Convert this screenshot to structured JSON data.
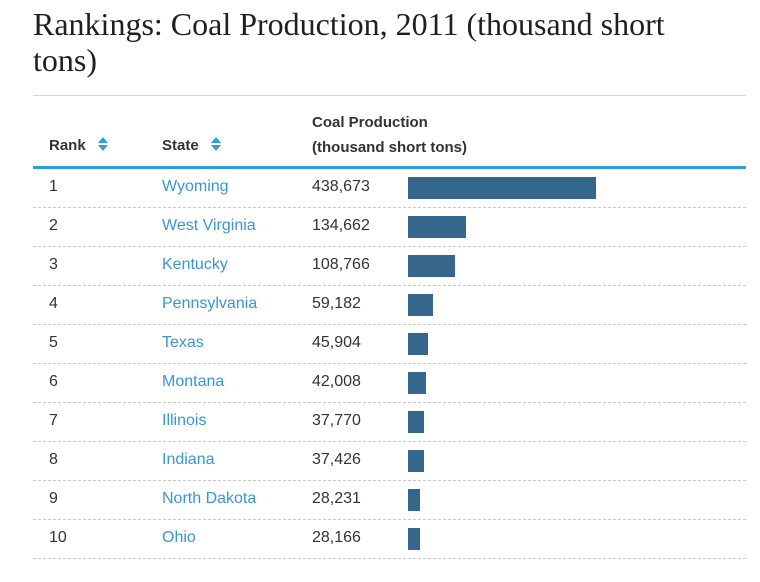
{
  "title": "Rankings: Coal Production, 2011 (thousand short tons)",
  "columns": {
    "rank": "Rank",
    "state": "State",
    "production_line1": "Coal Production",
    "production_line2": "(thousand short tons)"
  },
  "colors": {
    "bar": "#34678b",
    "link": "#3a95d3",
    "header_rule": "#2e9fd9"
  },
  "chart_data": {
    "type": "bar",
    "orientation": "horizontal",
    "title": "Rankings: Coal Production, 2011 (thousand short tons)",
    "categories": [
      "Wyoming",
      "West Virginia",
      "Kentucky",
      "Pennsylvania",
      "Texas",
      "Montana",
      "Illinois",
      "Indiana",
      "North Dakota",
      "Ohio"
    ],
    "values": [
      438673,
      134662,
      108766,
      59182,
      45904,
      42008,
      37770,
      37426,
      28231,
      28166
    ],
    "xlim": [
      0,
      438673
    ],
    "grid": false,
    "legend": "none"
  },
  "rows": [
    {
      "rank": "1",
      "state": "Wyoming",
      "value_label": "438,673"
    },
    {
      "rank": "2",
      "state": "West Virginia",
      "value_label": "134,662"
    },
    {
      "rank": "3",
      "state": "Kentucky",
      "value_label": "108,766"
    },
    {
      "rank": "4",
      "state": "Pennsylvania",
      "value_label": "59,182"
    },
    {
      "rank": "5",
      "state": "Texas",
      "value_label": "45,904"
    },
    {
      "rank": "6",
      "state": "Montana",
      "value_label": "42,008"
    },
    {
      "rank": "7",
      "state": "Illinois",
      "value_label": "37,770"
    },
    {
      "rank": "8",
      "state": "Indiana",
      "value_label": "37,426"
    },
    {
      "rank": "9",
      "state": "North Dakota",
      "value_label": "28,231"
    },
    {
      "rank": "10",
      "state": "Ohio",
      "value_label": "28,166"
    }
  ]
}
